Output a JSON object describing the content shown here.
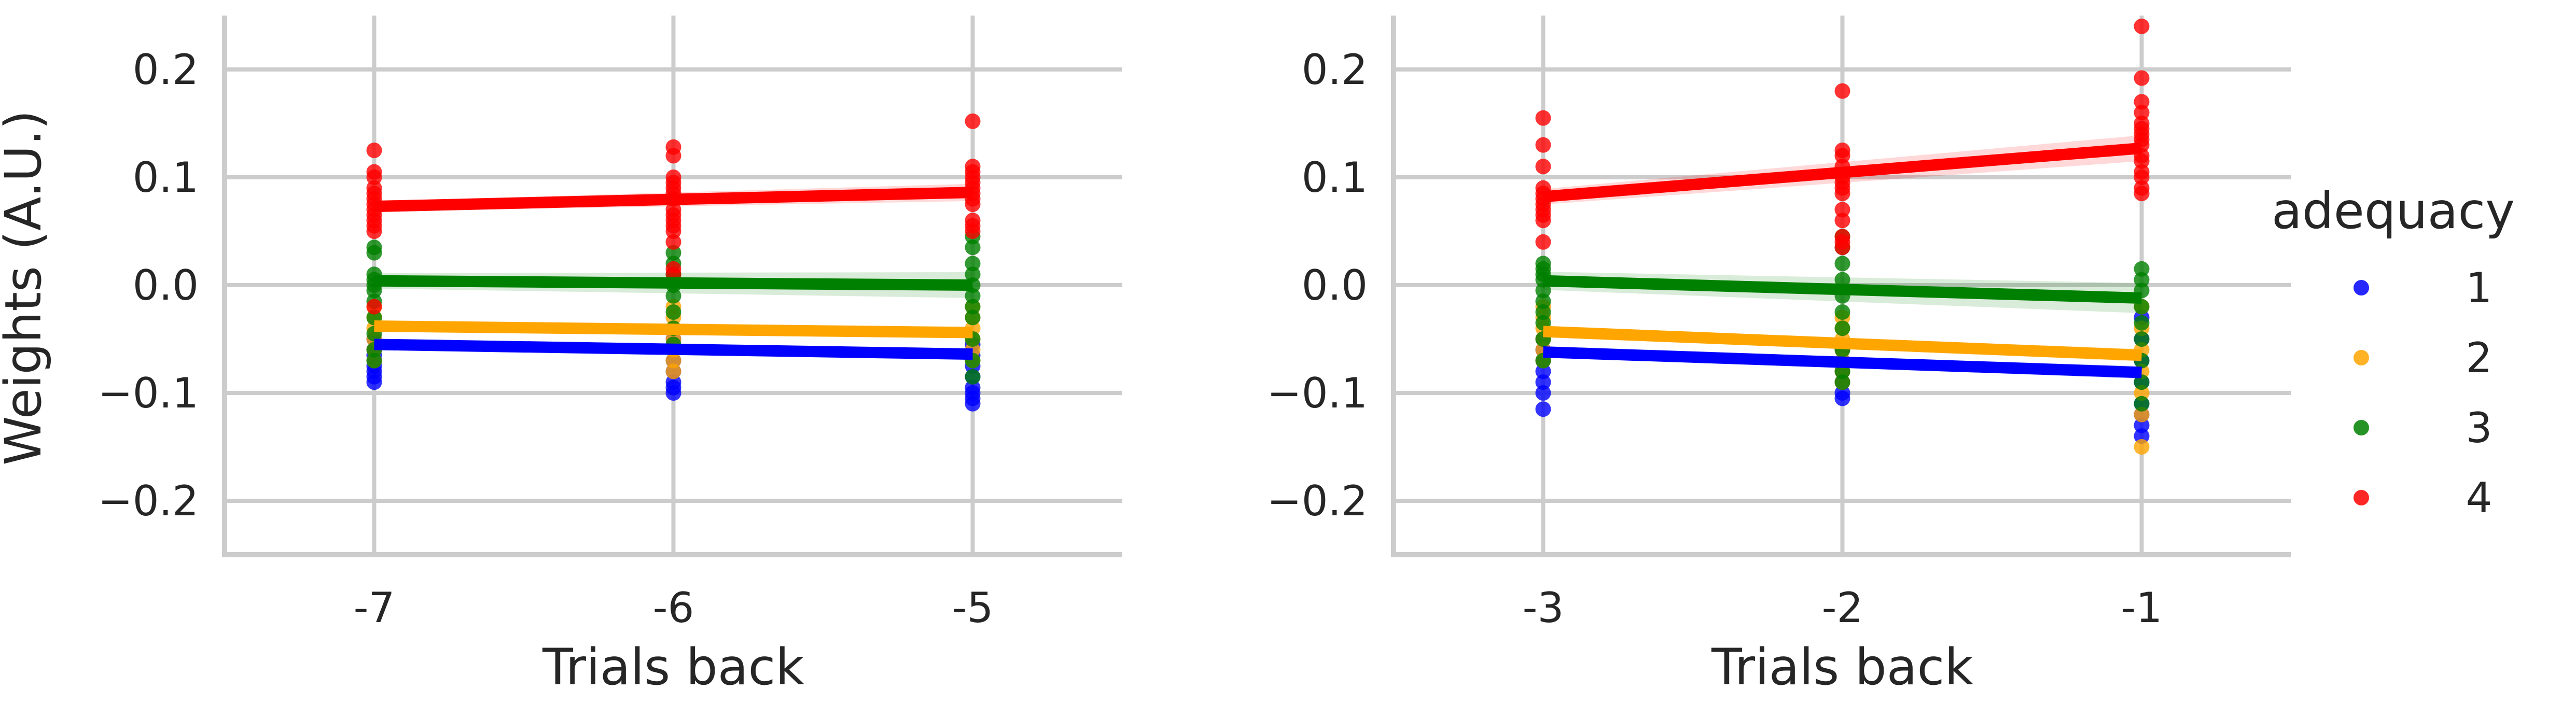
{
  "chart_data": {
    "type": "scatter",
    "legend": {
      "title": "adequacy",
      "placement": "right",
      "entries": [
        {
          "label": "1",
          "color": "#0000ff"
        },
        {
          "label": "2",
          "color": "#ffa500"
        },
        {
          "label": "3",
          "color": "#008000"
        },
        {
          "label": "4",
          "color": "#ff0000"
        }
      ]
    },
    "shared_ylabel": "Weights (A.U.)",
    "panels": [
      {
        "xlabel": "Trials back",
        "x_ticks": [
          -7,
          -6,
          -5
        ],
        "x_tick_labels": [
          "-7",
          "-6",
          "-5"
        ],
        "xlim": [
          -7.5,
          -4.5
        ],
        "ylim": [
          -0.25,
          0.25
        ],
        "y_ticks": [
          0.2,
          0.1,
          0.0,
          -0.1,
          -0.2
        ],
        "y_tick_labels": [
          "0.2",
          "0.1",
          "0.0",
          "−0.1",
          "−0.2"
        ],
        "grid": true,
        "series": [
          {
            "name": "1",
            "color": "#0000ff",
            "fit": {
              "x": [
                -7,
                -5
              ],
              "y": [
                -0.055,
                -0.064
              ],
              "ci": 0.004
            },
            "points": [
              {
                "x": -7,
                "y": [
                  -0.05,
                  -0.06,
                  -0.065,
                  -0.07,
                  -0.075,
                  -0.08,
                  -0.085,
                  -0.09
                ]
              },
              {
                "x": -6,
                "y": [
                  -0.05,
                  -0.06,
                  -0.07,
                  -0.08,
                  -0.09,
                  -0.095,
                  -0.1
                ]
              },
              {
                "x": -5,
                "y": [
                  -0.055,
                  -0.065,
                  -0.075,
                  -0.085,
                  -0.095,
                  -0.1,
                  -0.105,
                  -0.11
                ]
              }
            ]
          },
          {
            "name": "2",
            "color": "#ffa500",
            "fit": {
              "x": [
                -7,
                -5
              ],
              "y": [
                -0.038,
                -0.044
              ],
              "ci": 0.004
            },
            "points": [
              {
                "x": -7,
                "y": [
                  -0.02,
                  -0.03,
                  -0.04,
                  -0.05,
                  -0.06,
                  -0.07
                ]
              },
              {
                "x": -6,
                "y": [
                  -0.02,
                  -0.03,
                  -0.04,
                  -0.05,
                  -0.06,
                  -0.07,
                  -0.08
                ]
              },
              {
                "x": -5,
                "y": [
                  -0.02,
                  -0.03,
                  -0.04,
                  -0.05,
                  -0.06,
                  -0.07
                ]
              }
            ]
          },
          {
            "name": "3",
            "color": "#008000",
            "fit": {
              "x": [
                -7,
                -5
              ],
              "y": [
                0.004,
                0.0
              ],
              "ci": 0.012
            },
            "points": [
              {
                "x": -7,
                "y": [
                  0.035,
                  0.03,
                  0.01,
                  0.005,
                  0.0,
                  -0.005,
                  -0.015,
                  -0.03,
                  -0.045,
                  -0.06,
                  -0.07
                ]
              },
              {
                "x": -6,
                "y": [
                  0.03,
                  0.02,
                  0.01,
                  0.005,
                  0.0,
                  -0.01,
                  -0.025,
                  -0.04,
                  -0.055
                ]
              },
              {
                "x": -5,
                "y": [
                  0.045,
                  0.035,
                  0.02,
                  0.01,
                  0.0,
                  -0.01,
                  -0.02,
                  -0.03,
                  -0.05,
                  -0.07,
                  -0.085
                ]
              }
            ]
          },
          {
            "name": "4",
            "color": "#ff0000",
            "fit": {
              "x": [
                -7,
                -5
              ],
              "y": [
                0.073,
                0.086
              ],
              "ci": 0.008
            },
            "points": [
              {
                "x": -7,
                "y": [
                  0.125,
                  0.105,
                  0.1,
                  0.09,
                  0.085,
                  0.08,
                  0.075,
                  0.07,
                  0.065,
                  0.06,
                  0.055,
                  0.05,
                  -0.02
                ]
              },
              {
                "x": -6,
                "y": [
                  0.128,
                  0.12,
                  0.1,
                  0.095,
                  0.09,
                  0.085,
                  0.08,
                  0.07,
                  0.065,
                  0.06,
                  0.055,
                  0.05,
                  0.04,
                  0.015,
                  0.01
                ]
              },
              {
                "x": -5,
                "y": [
                  0.152,
                  0.11,
                  0.105,
                  0.1,
                  0.095,
                  0.09,
                  0.085,
                  0.08,
                  0.075,
                  0.06,
                  0.055,
                  0.05
                ]
              }
            ]
          }
        ]
      },
      {
        "xlabel": "Trials back",
        "x_ticks": [
          -3,
          -2,
          -1
        ],
        "x_tick_labels": [
          "-3",
          "-2",
          "-1"
        ],
        "xlim": [
          -3.5,
          -0.5
        ],
        "ylim": [
          -0.25,
          0.25
        ],
        "y_ticks": [
          0.2,
          0.1,
          0.0,
          -0.1,
          -0.2
        ],
        "y_tick_labels": [
          "0.2",
          "0.1",
          "0.0",
          "−0.1",
          "−0.2"
        ],
        "grid": true,
        "series": [
          {
            "name": "1",
            "color": "#0000ff",
            "fit": {
              "x": [
                -3,
                -1
              ],
              "y": [
                -0.062,
                -0.081
              ],
              "ci": 0.006
            },
            "points": [
              {
                "x": -3,
                "y": [
                  -0.05,
                  -0.06,
                  -0.07,
                  -0.08,
                  -0.09,
                  -0.1,
                  -0.115
                ]
              },
              {
                "x": -2,
                "y": [
                  -0.06,
                  -0.07,
                  -0.08,
                  -0.09,
                  -0.1,
                  -0.105
                ]
              },
              {
                "x": -1,
                "y": [
                  -0.03,
                  -0.05,
                  -0.07,
                  -0.09,
                  -0.11,
                  -0.12,
                  -0.13,
                  -0.14
                ]
              }
            ]
          },
          {
            "name": "2",
            "color": "#ffa500",
            "fit": {
              "x": [
                -3,
                -1
              ],
              "y": [
                -0.043,
                -0.065
              ],
              "ci": 0.006
            },
            "points": [
              {
                "x": -3,
                "y": [
                  -0.02,
                  -0.03,
                  -0.04,
                  -0.05,
                  -0.06,
                  -0.07
                ]
              },
              {
                "x": -2,
                "y": [
                  -0.03,
                  -0.04,
                  -0.05,
                  -0.06,
                  -0.07,
                  -0.08,
                  -0.09
                ]
              },
              {
                "x": -1,
                "y": [
                  -0.02,
                  -0.04,
                  -0.06,
                  -0.08,
                  -0.1,
                  -0.12,
                  -0.15
                ]
              }
            ]
          },
          {
            "name": "3",
            "color": "#008000",
            "fit": {
              "x": [
                -3,
                -1
              ],
              "y": [
                0.004,
                -0.012
              ],
              "ci": 0.014
            },
            "points": [
              {
                "x": -3,
                "y": [
                  0.02,
                  0.015,
                  0.01,
                  0.005,
                  -0.005,
                  -0.015,
                  -0.025,
                  -0.035,
                  -0.05,
                  -0.07
                ]
              },
              {
                "x": -2,
                "y": [
                  0.045,
                  0.035,
                  0.02,
                  0.005,
                  -0.01,
                  -0.025,
                  -0.04,
                  -0.06,
                  -0.08,
                  -0.09
                ]
              },
              {
                "x": -1,
                "y": [
                  0.015,
                  0.005,
                  -0.005,
                  -0.02,
                  -0.035,
                  -0.05,
                  -0.07,
                  -0.09,
                  -0.11
                ]
              }
            ]
          },
          {
            "name": "4",
            "color": "#ff0000",
            "fit": {
              "x": [
                -3,
                -1
              ],
              "y": [
                0.082,
                0.127
              ],
              "ci": 0.012
            },
            "points": [
              {
                "x": -3,
                "y": [
                  0.155,
                  0.13,
                  0.11,
                  0.09,
                  0.085,
                  0.08,
                  0.075,
                  0.07,
                  0.065,
                  0.06,
                  0.04
                ]
              },
              {
                "x": -2,
                "y": [
                  0.18,
                  0.125,
                  0.12,
                  0.11,
                  0.1,
                  0.095,
                  0.09,
                  0.085,
                  0.07,
                  0.06,
                  0.045,
                  0.04,
                  0.035
                ]
              },
              {
                "x": -1,
                "y": [
                  0.24,
                  0.192,
                  0.17,
                  0.16,
                  0.15,
                  0.145,
                  0.14,
                  0.135,
                  0.13,
                  0.12,
                  0.115,
                  0.105,
                  0.1,
                  0.09,
                  0.085
                ]
              }
            ]
          }
        ]
      }
    ]
  }
}
